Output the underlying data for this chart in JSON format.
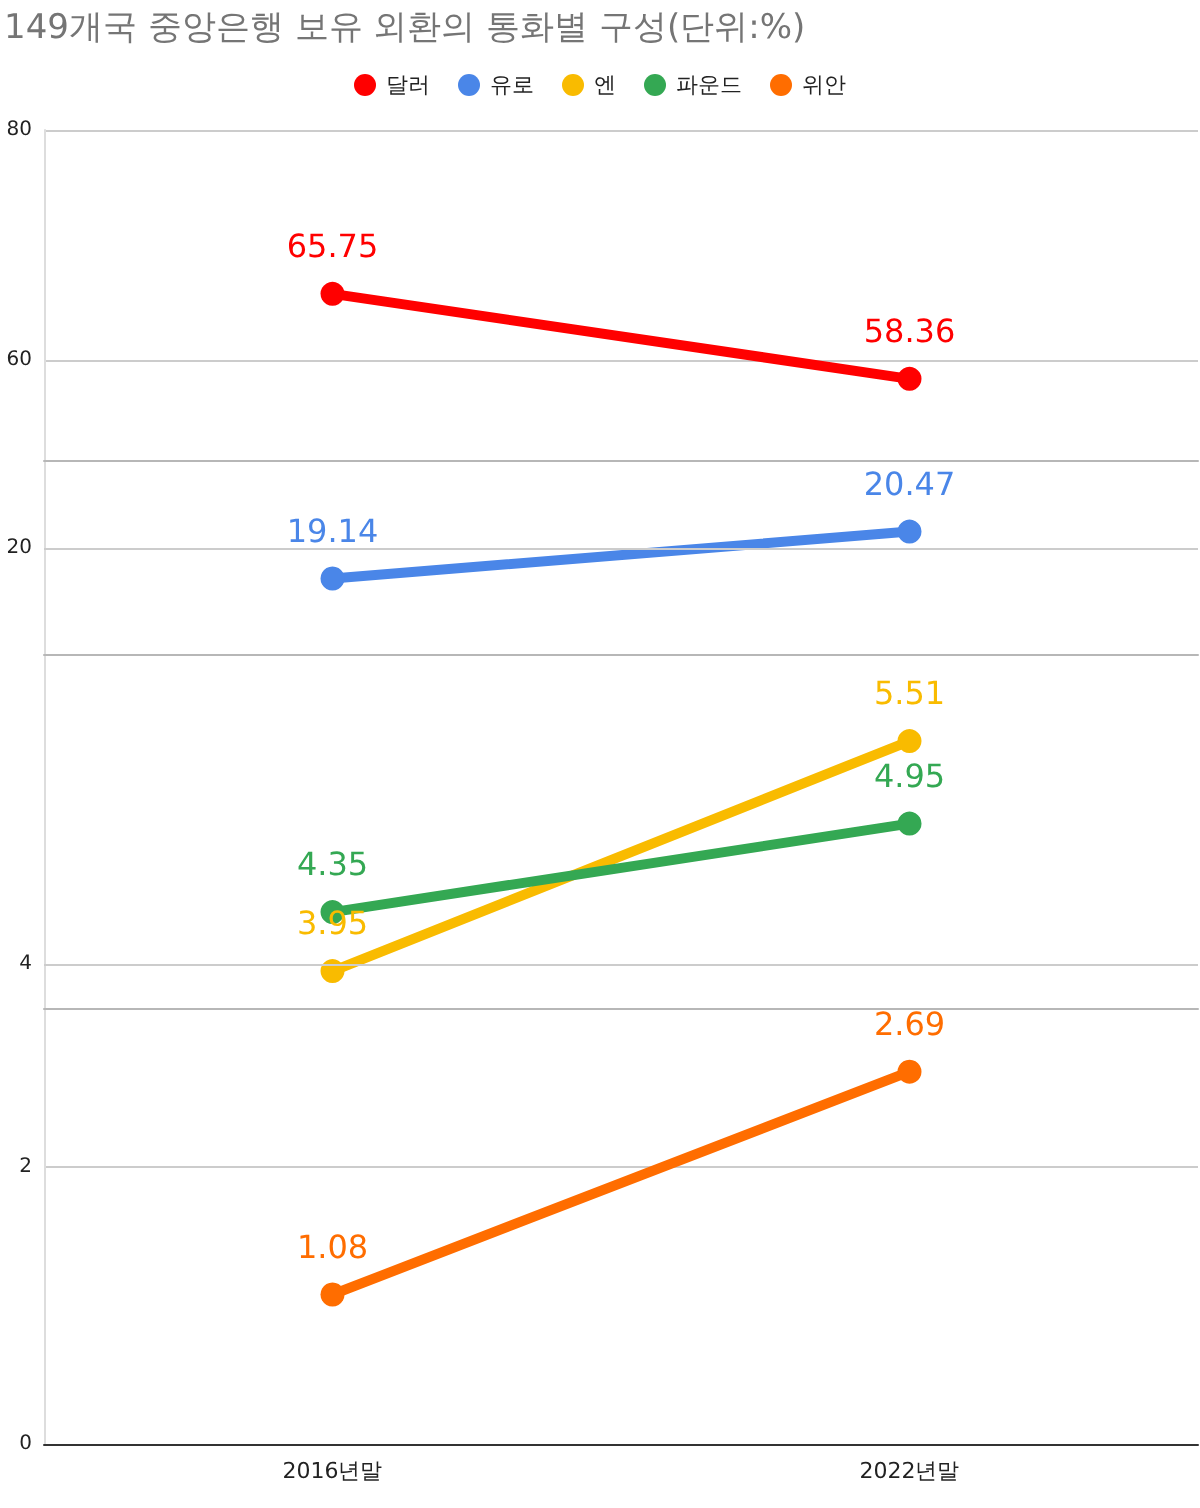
{
  "chart_data": [
    {
      "type": "line",
      "title": "149개국 중앙은행 보유 외환의 통화별 구성(단위:%)",
      "legend": "top",
      "ylim": [
        51.3,
        80
      ],
      "yticks": [
        60,
        80
      ],
      "grid": "y",
      "tick_labels": "y",
      "marker": "circle",
      "data_labels": true,
      "series": [
        {
          "name": "달러",
          "color": "#ff0000",
          "values": [
            65.75,
            58.36
          ]
        }
      ]
    },
    {
      "type": "line",
      "legend": "top",
      "ylim": [
        17,
        22.5
      ],
      "ref_lines": [
        {
          "axis": "y",
          "value": 20,
          "label": "20"
        }
      ],
      "tick_labels": "y",
      "marker": "circle",
      "data_labels": true,
      "series": [
        {
          "name": "유로",
          "color": "#4a86e8",
          "values": [
            19.14,
            20.47
          ]
        }
      ]
    },
    {
      "type": "line",
      "legend": "top",
      "ylim": [
        3.7,
        6.1
      ],
      "ref_lines": [
        {
          "axis": "y",
          "value": 4,
          "label": "4"
        }
      ],
      "tick_labels": "y",
      "marker": "circle",
      "data_labels": true,
      "series": [
        {
          "name": "엔",
          "color": "#f9bb00",
          "values": [
            3.95,
            5.51
          ]
        },
        {
          "name": "파운드",
          "color": "#34a853",
          "values": [
            4.35,
            4.95
          ]
        }
      ]
    },
    {
      "type": "line",
      "legend": "top",
      "categories": [
        "2016년말",
        "2022년말"
      ],
      "ylim": [
        0,
        3.15
      ],
      "yticks": [
        0,
        2
      ],
      "grid": "y",
      "marker": "circle",
      "data_labels": true,
      "series": [
        {
          "name": "위안",
          "color": "#ff6d00",
          "values": [
            1.08,
            2.69
          ]
        }
      ]
    }
  ]
}
